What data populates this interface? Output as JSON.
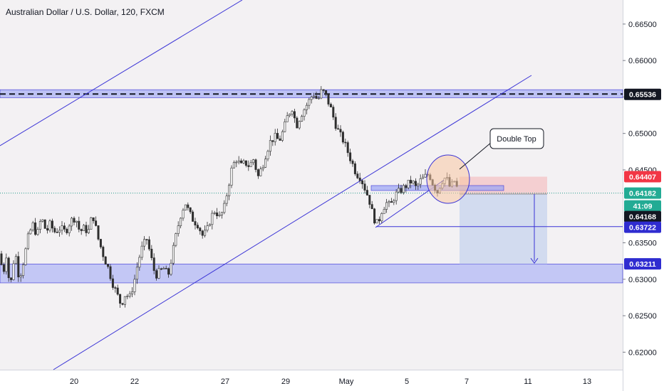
{
  "symbol_title": "Australian Dollar / U.S. Dollar, 120, FXCM",
  "colors": {
    "background": "#f3f1f3",
    "axis_background": "#ffffff",
    "up_candle": "#2e2e2e",
    "down_candle": "#2e2e2e",
    "trendline": "#3a33d6",
    "zone_fill": "#9aa4f5",
    "zone_stroke": "#3a33d6",
    "target_fill": "#c7d3ee",
    "stop_fill": "#f4c7c8",
    "ellipse_fill": "#f7c6a2",
    "teal_dotted": "#2a9d8f",
    "label_black": "#131722",
    "label_red": "#f23645",
    "label_teal": "#22ab94",
    "label_blue": "#2f2cd0"
  },
  "chart_data": {
    "type": "candlestick",
    "title": "Australian Dollar / U.S. Dollar, 120, FXCM",
    "ylim": [
      0.6176,
      0.6683
    ],
    "x_tick_labels": [
      "20",
      "22",
      "27",
      "29",
      "May",
      "5",
      "7",
      "11",
      "13"
    ],
    "y_tick_labels": [
      "0.66500",
      "0.66000",
      "0.65500",
      "0.65000",
      "0.64500",
      "0.63500",
      "0.63000",
      "0.62500",
      "0.62000"
    ],
    "y_ticks": [
      0.665,
      0.66,
      0.655,
      0.65,
      0.645,
      0.635,
      0.63,
      0.625,
      0.62
    ],
    "price_labels": [
      {
        "text": "0.65536",
        "value": 0.65536,
        "style": "black"
      },
      {
        "text": "0.64407",
        "value": 0.64407,
        "style": "red"
      },
      {
        "text": "0.64182",
        "value": 0.64182,
        "style": "teal"
      },
      {
        "text": "41:09",
        "style": "teal"
      },
      {
        "text": "0.64168",
        "value": 0.64168,
        "style": "black"
      },
      {
        "text": "0.63722",
        "value": 0.63722,
        "style": "blue"
      },
      {
        "text": "0.63211",
        "value": 0.63211,
        "style": "blue"
      }
    ],
    "horizontal_levels": [
      {
        "name": "resistance-zone",
        "from": 0.6549,
        "to": 0.656
      },
      {
        "name": "support-zone",
        "from": 0.6295,
        "to": 0.6321
      },
      {
        "name": "resistance-dashed",
        "value": 0.6554
      },
      {
        "name": "current-price-dotted",
        "value": 0.64182
      },
      {
        "name": "neckline",
        "value": 0.63722
      }
    ],
    "annotation": {
      "text": "Double Top"
    },
    "position": {
      "entry": 0.64168,
      "stop": 0.64407,
      "target": 0.63211
    },
    "candle_path": [
      {
        "t": 0,
        "p": 0.6335
      },
      {
        "t": 4,
        "p": 0.6305
      },
      {
        "t": 9,
        "p": 0.6335
      },
      {
        "t": 14,
        "p": 0.6285
      },
      {
        "t": 21,
        "p": 0.634
      },
      {
        "t": 27,
        "p": 0.63
      },
      {
        "t": 33,
        "p": 0.6325
      },
      {
        "t": 40,
        "p": 0.636
      },
      {
        "t": 46,
        "p": 0.6375
      },
      {
        "t": 52,
        "p": 0.636
      },
      {
        "t": 58,
        "p": 0.6385
      },
      {
        "t": 65,
        "p": 0.6365
      },
      {
        "t": 70,
        "p": 0.6375
      },
      {
        "t": 77,
        "p": 0.6365
      },
      {
        "t": 84,
        "p": 0.637
      },
      {
        "t": 92,
        "p": 0.6365
      },
      {
        "t": 99,
        "p": 0.638
      },
      {
        "t": 106,
        "p": 0.6385
      },
      {
        "t": 112,
        "p": 0.6365
      },
      {
        "t": 118,
        "p": 0.637
      },
      {
        "t": 124,
        "p": 0.6365
      },
      {
        "t": 130,
        "p": 0.639
      },
      {
        "t": 138,
        "p": 0.6355
      },
      {
        "t": 146,
        "p": 0.633
      },
      {
        "t": 152,
        "p": 0.6315
      },
      {
        "t": 158,
        "p": 0.6295
      },
      {
        "t": 164,
        "p": 0.628
      },
      {
        "t": 170,
        "p": 0.6265
      },
      {
        "t": 176,
        "p": 0.628
      },
      {
        "t": 182,
        "p": 0.6275
      },
      {
        "t": 188,
        "p": 0.6295
      },
      {
        "t": 194,
        "p": 0.6325
      },
      {
        "t": 200,
        "p": 0.6345
      },
      {
        "t": 206,
        "p": 0.6355
      },
      {
        "t": 212,
        "p": 0.633
      },
      {
        "t": 218,
        "p": 0.6305
      },
      {
        "t": 224,
        "p": 0.631
      },
      {
        "t": 230,
        "p": 0.6315
      },
      {
        "t": 236,
        "p": 0.6305
      },
      {
        "t": 242,
        "p": 0.6335
      },
      {
        "t": 248,
        "p": 0.6365
      },
      {
        "t": 254,
        "p": 0.639
      },
      {
        "t": 260,
        "p": 0.6405
      },
      {
        "t": 266,
        "p": 0.639
      },
      {
        "t": 272,
        "p": 0.638
      },
      {
        "t": 278,
        "p": 0.6375
      },
      {
        "t": 284,
        "p": 0.636
      },
      {
        "t": 290,
        "p": 0.6365
      },
      {
        "t": 296,
        "p": 0.6385
      },
      {
        "t": 302,
        "p": 0.6395
      },
      {
        "t": 308,
        "p": 0.6385
      },
      {
        "t": 314,
        "p": 0.6395
      },
      {
        "t": 320,
        "p": 0.6425
      },
      {
        "t": 326,
        "p": 0.6455
      },
      {
        "t": 332,
        "p": 0.6465
      },
      {
        "t": 338,
        "p": 0.6455
      },
      {
        "t": 344,
        "p": 0.646
      },
      {
        "t": 350,
        "p": 0.6455
      },
      {
        "t": 356,
        "p": 0.6465
      },
      {
        "t": 362,
        "p": 0.644
      },
      {
        "t": 368,
        "p": 0.6455
      },
      {
        "t": 374,
        "p": 0.6475
      },
      {
        "t": 380,
        "p": 0.649
      },
      {
        "t": 386,
        "p": 0.6495
      },
      {
        "t": 392,
        "p": 0.649
      },
      {
        "t": 398,
        "p": 0.6505
      },
      {
        "t": 404,
        "p": 0.6525
      },
      {
        "t": 410,
        "p": 0.6535
      },
      {
        "t": 416,
        "p": 0.651
      },
      {
        "t": 422,
        "p": 0.6525
      },
      {
        "t": 428,
        "p": 0.6535
      },
      {
        "t": 434,
        "p": 0.6545
      },
      {
        "t": 440,
        "p": 0.6555
      },
      {
        "t": 446,
        "p": 0.6545
      },
      {
        "t": 452,
        "p": 0.656
      },
      {
        "t": 458,
        "p": 0.655
      },
      {
        "t": 464,
        "p": 0.6535
      },
      {
        "t": 470,
        "p": 0.6515
      },
      {
        "t": 476,
        "p": 0.65
      },
      {
        "t": 482,
        "p": 0.649
      },
      {
        "t": 488,
        "p": 0.6475
      },
      {
        "t": 494,
        "p": 0.646
      },
      {
        "t": 500,
        "p": 0.6445
      },
      {
        "t": 506,
        "p": 0.644
      },
      {
        "t": 512,
        "p": 0.6425
      },
      {
        "t": 518,
        "p": 0.641
      },
      {
        "t": 524,
        "p": 0.6385
      },
      {
        "t": 530,
        "p": 0.6375
      },
      {
        "t": 536,
        "p": 0.6395
      },
      {
        "t": 542,
        "p": 0.6405
      },
      {
        "t": 548,
        "p": 0.64
      },
      {
        "t": 554,
        "p": 0.6415
      },
      {
        "t": 560,
        "p": 0.642
      },
      {
        "t": 566,
        "p": 0.6425
      },
      {
        "t": 572,
        "p": 0.643
      },
      {
        "t": 578,
        "p": 0.6435
      },
      {
        "t": 584,
        "p": 0.6425
      },
      {
        "t": 590,
        "p": 0.6435
      },
      {
        "t": 596,
        "p": 0.644
      },
      {
        "t": 602,
        "p": 0.6445
      },
      {
        "t": 608,
        "p": 0.643
      },
      {
        "t": 614,
        "p": 0.642
      },
      {
        "t": 620,
        "p": 0.6435
      },
      {
        "t": 626,
        "p": 0.644
      },
      {
        "t": 632,
        "p": 0.6425
      },
      {
        "t": 638,
        "p": 0.6435
      },
      {
        "t": 644,
        "p": 0.6418
      }
    ]
  }
}
